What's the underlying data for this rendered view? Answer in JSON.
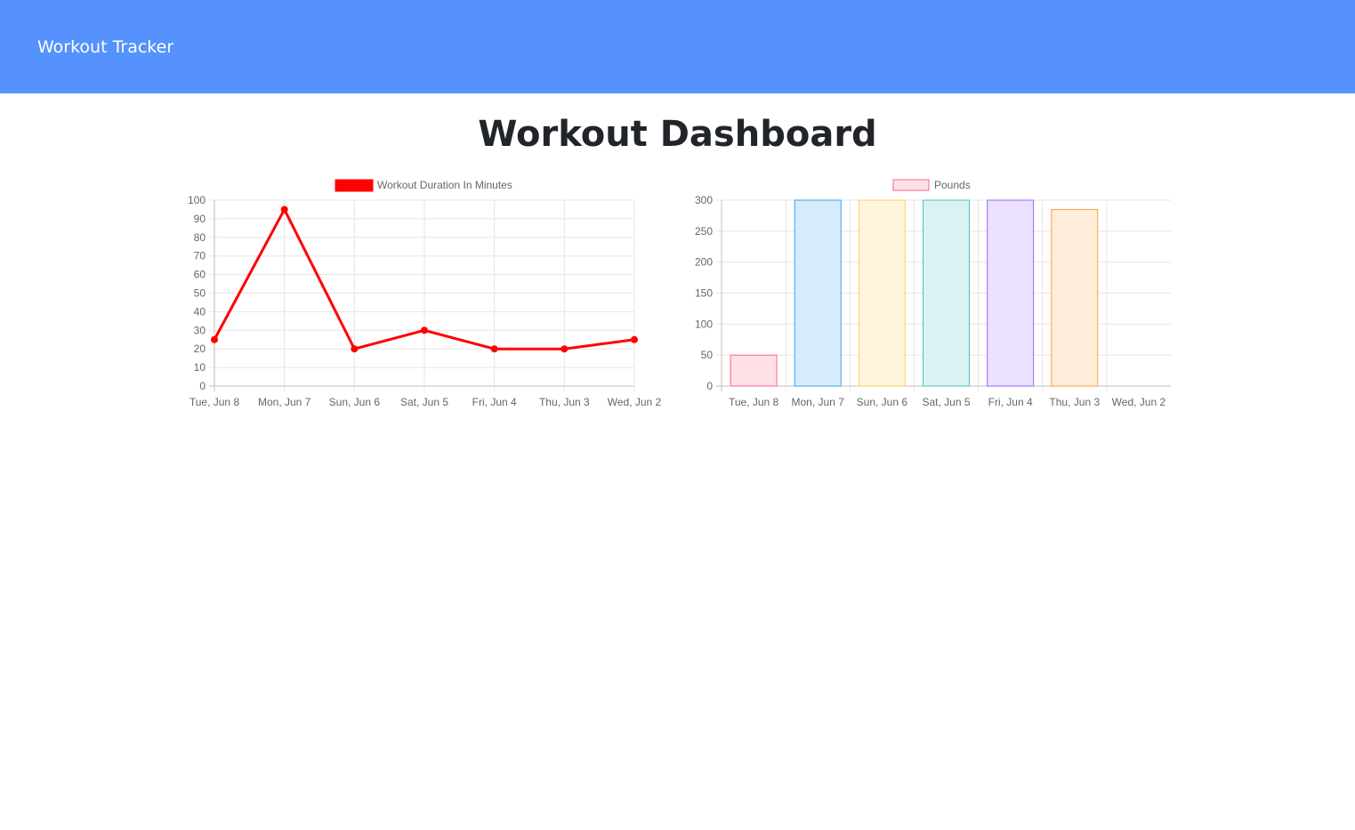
{
  "navbar": {
    "brand": "Workout Tracker",
    "bg_color": "#5592fd"
  },
  "page": {
    "title": "Workout Dashboard"
  },
  "chart_data": [
    {
      "type": "line",
      "categories": [
        "Tue, Jun 8",
        "Mon, Jun 7",
        "Sun, Jun 6",
        "Sat, Jun 5",
        "Fri, Jun 4",
        "Thu, Jun 3",
        "Wed, Jun 2"
      ],
      "series": [
        {
          "name": "Workout Duration In Minutes",
          "values": [
            25,
            95,
            20,
            30,
            20,
            20,
            25
          ],
          "color": "#ff0000"
        }
      ],
      "yticks": [
        "100",
        "90",
        "80",
        "70",
        "60",
        "50",
        "40",
        "30",
        "20",
        "10",
        "0"
      ],
      "ylim": [
        0,
        100
      ],
      "grid": true,
      "legend": "top-center"
    },
    {
      "type": "bar",
      "categories": [
        "Tue, Jun 8",
        "Mon, Jun 7",
        "Sun, Jun 6",
        "Sat, Jun 5",
        "Fri, Jun 4",
        "Thu, Jun 3",
        "Wed, Jun 2"
      ],
      "series": [
        {
          "name": "Pounds",
          "values": [
            50,
            300,
            300,
            300,
            300,
            285,
            0
          ]
        }
      ],
      "bar_colors": [
        {
          "fill": "#ffe0e6",
          "stroke": "#ff6384"
        },
        {
          "fill": "#d7ecfb",
          "stroke": "#36a2eb"
        },
        {
          "fill": "#fff5dd",
          "stroke": "#ffce56"
        },
        {
          "fill": "#dbf2f2",
          "stroke": "#4bc0c0"
        },
        {
          "fill": "#ebe0ff",
          "stroke": "#9966ff"
        },
        {
          "fill": "#ffecd9",
          "stroke": "#ff9f40"
        },
        {
          "fill": "#f5f5f5",
          "stroke": "#c9cbcf"
        }
      ],
      "yticks": [
        "300",
        "250",
        "200",
        "150",
        "100",
        "50",
        "0"
      ],
      "ylim": [
        0,
        300
      ],
      "grid": true,
      "legend": "top-center"
    }
  ]
}
